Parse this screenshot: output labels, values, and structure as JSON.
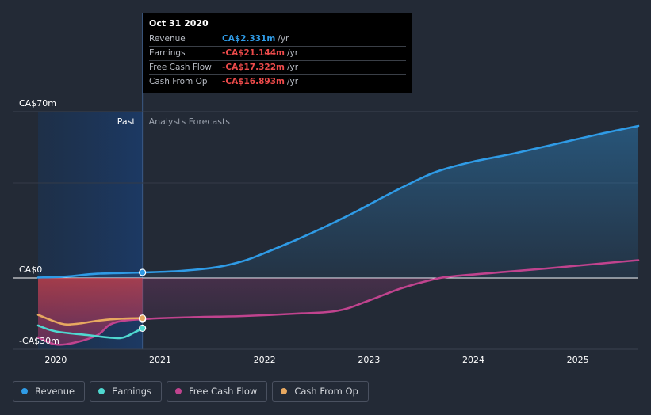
{
  "chart_data": {
    "type": "line",
    "y_unit": "CA$m",
    "ylim": [
      -30,
      70
    ],
    "y_axis_labels": [
      {
        "value": 70,
        "text": "CA$70m"
      },
      {
        "value": 0,
        "text": "CA$0"
      },
      {
        "value": -30,
        "text": "-CA$30m"
      }
    ],
    "x_range": [
      2019.83,
      2025.58
    ],
    "x_ticks": [
      {
        "value": 2020,
        "text": "2020"
      },
      {
        "value": 2021,
        "text": "2021"
      },
      {
        "value": 2022,
        "text": "2022"
      },
      {
        "value": 2023,
        "text": "2023"
      },
      {
        "value": 2024,
        "text": "2024"
      },
      {
        "value": 2025,
        "text": "2025"
      }
    ],
    "past_end": 2020.83,
    "past_label": "Past",
    "forecast_label": "Analysts Forecasts",
    "series": [
      {
        "name": "Revenue",
        "color": "#2f9be6",
        "points": [
          [
            2019.83,
            0.2
          ],
          [
            2020.1,
            0.6
          ],
          [
            2020.4,
            1.8
          ],
          [
            2020.83,
            2.331
          ],
          [
            2021.2,
            3.0
          ],
          [
            2021.55,
            4.6
          ],
          [
            2021.8,
            7.2
          ],
          [
            2022.0,
            10.5
          ],
          [
            2022.3,
            16.0
          ],
          [
            2022.6,
            22.0
          ],
          [
            2022.9,
            28.5
          ],
          [
            2023.2,
            35.5
          ],
          [
            2023.5,
            42.0
          ],
          [
            2023.7,
            45.5
          ],
          [
            2024.0,
            49.0
          ],
          [
            2024.4,
            52.5
          ],
          [
            2024.8,
            56.5
          ],
          [
            2025.2,
            60.5
          ],
          [
            2025.58,
            64.0
          ]
        ]
      },
      {
        "name": "Earnings",
        "color": "#4fd8d0",
        "points": [
          [
            2019.83,
            -20.0
          ],
          [
            2020.0,
            -22.5
          ],
          [
            2020.3,
            -24.0
          ],
          [
            2020.55,
            -25.2
          ],
          [
            2020.65,
            -25.0
          ],
          [
            2020.75,
            -23.0
          ],
          [
            2020.83,
            -21.144
          ]
        ]
      },
      {
        "name": "Free Cash Flow",
        "color": "#c0438e",
        "points": [
          [
            2019.83,
            -25.0
          ],
          [
            2020.0,
            -28.0
          ],
          [
            2020.2,
            -27.0
          ],
          [
            2020.4,
            -24.0
          ],
          [
            2020.55,
            -19.0
          ],
          [
            2020.83,
            -17.322
          ],
          [
            2021.3,
            -16.5
          ],
          [
            2021.8,
            -16.0
          ],
          [
            2022.3,
            -15.0
          ],
          [
            2022.7,
            -13.8
          ],
          [
            2023.0,
            -9.5
          ],
          [
            2023.3,
            -4.5
          ],
          [
            2023.6,
            -0.8
          ],
          [
            2023.8,
            0.7
          ],
          [
            2024.2,
            2.2
          ],
          [
            2024.7,
            4.0
          ],
          [
            2025.2,
            6.0
          ],
          [
            2025.58,
            7.5
          ]
        ]
      },
      {
        "name": "Cash From Op",
        "color": "#e7a860",
        "points": [
          [
            2019.83,
            -15.5
          ],
          [
            2020.05,
            -19.2
          ],
          [
            2020.2,
            -19.3
          ],
          [
            2020.4,
            -18.0
          ],
          [
            2020.6,
            -17.2
          ],
          [
            2020.83,
            -16.893
          ]
        ]
      }
    ]
  },
  "tooltip": {
    "title": "Oct 31 2020",
    "rows": [
      {
        "label": "Revenue",
        "value": "CA$2.331m",
        "unit": "/yr",
        "color": "#2f9be6"
      },
      {
        "label": "Earnings",
        "value": "-CA$21.144m",
        "unit": "/yr",
        "color": "#ee4b4b"
      },
      {
        "label": "Free Cash Flow",
        "value": "-CA$17.322m",
        "unit": "/yr",
        "color": "#ee4b4b"
      },
      {
        "label": "Cash From Op",
        "value": "-CA$16.893m",
        "unit": "/yr",
        "color": "#ee4b4b"
      }
    ]
  },
  "legend": [
    {
      "label": "Revenue",
      "color": "#2f9be6"
    },
    {
      "label": "Earnings",
      "color": "#4fd8d0"
    },
    {
      "label": "Free Cash Flow",
      "color": "#c0438e"
    },
    {
      "label": "Cash From Op",
      "color": "#e7a860"
    }
  ]
}
